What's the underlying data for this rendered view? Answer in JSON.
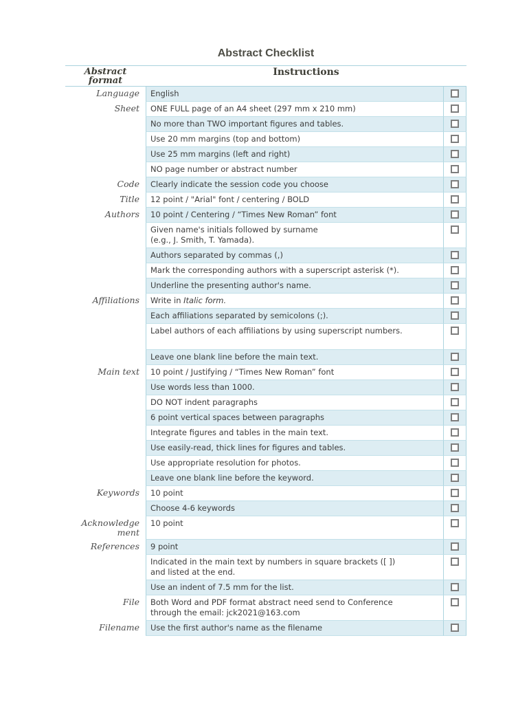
{
  "page": {
    "title": "Abstract Checklist"
  },
  "table": {
    "header": {
      "format_col": "Abstract\nformat",
      "instructions_col": "Instructions"
    },
    "rows": [
      {
        "label": "Language",
        "text": "English",
        "bg": "blue"
      },
      {
        "label": "Sheet",
        "text": "ONE FULL page of an A4 sheet (297 mm x 210 mm)",
        "bg": "white"
      },
      {
        "label": "",
        "text": "No more than TWO important figures and tables.",
        "bg": "blue"
      },
      {
        "label": "",
        "text": "Use 20 mm margins (top and bottom)",
        "bg": "white"
      },
      {
        "label": "",
        "text": "Use 25 mm margins (left and right)",
        "bg": "blue"
      },
      {
        "label": "",
        "text": "NO page number or abstract number",
        "bg": "white"
      },
      {
        "label": "Code",
        "text": "Clearly indicate the session code you choose",
        "bg": "blue"
      },
      {
        "label": "Title",
        "text": "12 point / \"Arial\" font / centering / BOLD",
        "bg": "white"
      },
      {
        "label": "Authors",
        "text": "10 point / Centering / “Times New Roman” font",
        "bg": "blue"
      },
      {
        "label": "",
        "text": "Given name's initials followed by surname\n(e.g., J. Smith, T. Yamada).",
        "bg": "white"
      },
      {
        "label": "",
        "text": "Authors separated by commas (,)",
        "bg": "blue"
      },
      {
        "label": "",
        "text": "Mark the corresponding authors with a superscript asterisk (*).",
        "bg": "white"
      },
      {
        "label": "",
        "text": "Underline the presenting author's name.",
        "bg": "blue"
      },
      {
        "label": "Affiliations",
        "text": "Write in ",
        "italic": "Italic form.",
        "bg": "white"
      },
      {
        "label": "",
        "text": "Each affiliations separated by semicolons (;).",
        "bg": "blue"
      },
      {
        "label": "",
        "text": "Label authors of each affiliations by using superscript numbers.",
        "bg": "white",
        "tall": true
      },
      {
        "label": "",
        "text": "Leave one blank line before the main text.",
        "bg": "blue"
      },
      {
        "label": "Main text",
        "text": "10 point / Justifying / “Times New Roman” font",
        "bg": "white"
      },
      {
        "label": "",
        "text": "Use words less than 1000.",
        "bg": "blue"
      },
      {
        "label": "",
        "text": "DO NOT indent paragraphs",
        "bg": "white"
      },
      {
        "label": "",
        "text": "6 point vertical spaces between paragraphs",
        "bg": "blue"
      },
      {
        "label": "",
        "text": "Integrate figures and tables in the main text.",
        "bg": "white"
      },
      {
        "label": "",
        "text": "Use easily-read, thick lines for figures and tables.",
        "bg": "blue"
      },
      {
        "label": "",
        "text": "Use appropriate resolution for photos.",
        "bg": "white"
      },
      {
        "label": "",
        "text": "Leave one blank line before the keyword.",
        "bg": "blue"
      },
      {
        "label": "Keywords",
        "text": "10 point",
        "bg": "white"
      },
      {
        "label": "",
        "text": "Choose 4-6 keywords",
        "bg": "blue"
      },
      {
        "label": "Acknowledge\nment",
        "text": "10 point",
        "bg": "white"
      },
      {
        "label": "References",
        "text": "9 point",
        "bg": "blue"
      },
      {
        "label": "",
        "text": "Indicated in the main text by numbers in square brackets ([ ])\nand listed at the end.",
        "bg": "white"
      },
      {
        "label": "",
        "text": "Use an indent of 7.5 mm for the list.",
        "bg": "blue"
      },
      {
        "label": "File",
        "text": "Both Word and PDF format abstract need send to Conference\nthrough the email: jck2021@163.com",
        "bg": "white"
      },
      {
        "label": "Filename",
        "text": "Use the first author's name as the filename",
        "bg": "blue"
      }
    ]
  }
}
